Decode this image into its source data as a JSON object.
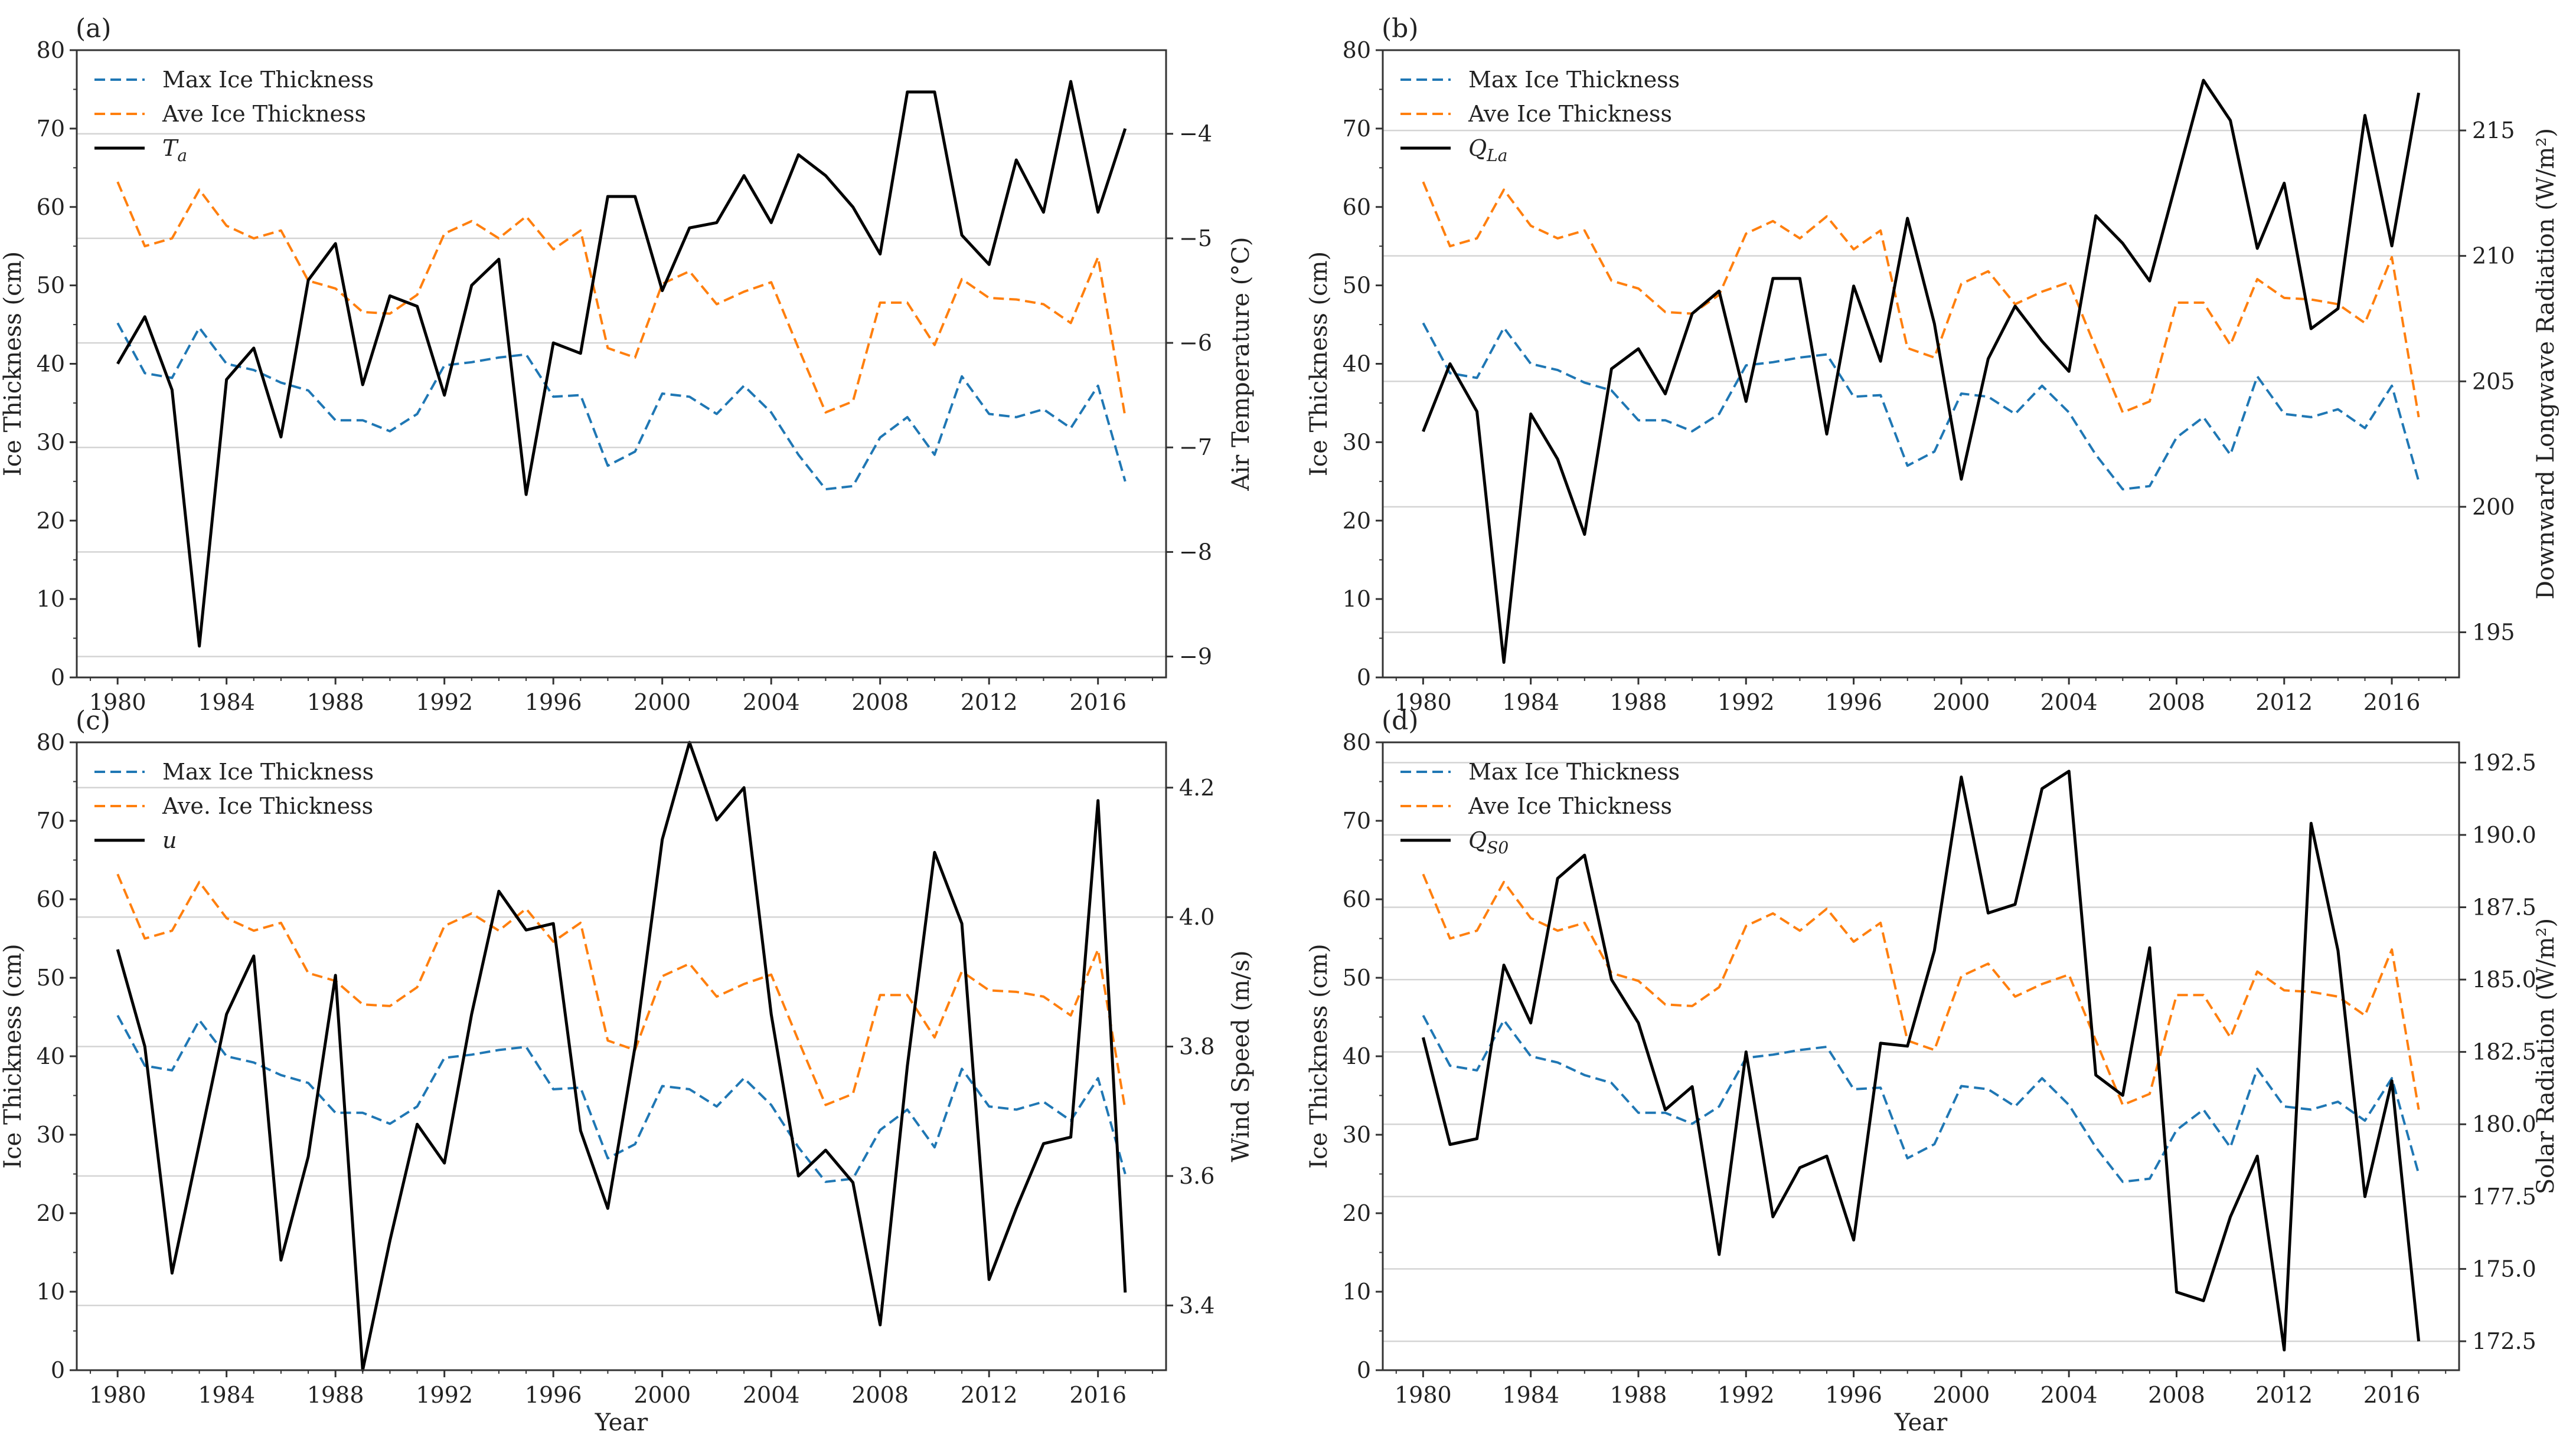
{
  "chart_data": [
    {
      "type": "line",
      "panel_label": "(a)",
      "title": "",
      "xlabel": "",
      "ylabel": "Ice Thickness (cm)",
      "y2label": "Air Temperature (°C)",
      "xlim": [
        1978.5,
        2018.5
      ],
      "ylim": [
        0,
        80
      ],
      "y2lim": [
        -9.2,
        -3.2
      ],
      "x_ticks": [
        1980,
        1984,
        1988,
        1992,
        1996,
        2000,
        2004,
        2008,
        2012,
        2016
      ],
      "x_tick_labels": [
        "1980",
        "1984",
        "1988",
        "1992",
        "1996",
        "2000",
        "2004",
        "2008",
        "2012",
        "2016"
      ],
      "y_ticks": [
        0,
        10,
        20,
        30,
        40,
        50,
        60,
        70,
        80
      ],
      "y_tick_labels": [
        "0",
        "10",
        "20",
        "30",
        "40",
        "50",
        "60",
        "70",
        "80"
      ],
      "y2_ticks": [
        -9,
        -8,
        -7,
        -6,
        -5,
        -4
      ],
      "y2_tick_labels": [
        "−9",
        "−8",
        "−7",
        "−6",
        "−5",
        "−4"
      ],
      "legend_position": "top-left",
      "x": [
        1980,
        1981,
        1982,
        1983,
        1984,
        1985,
        1986,
        1987,
        1988,
        1989,
        1990,
        1991,
        1992,
        1993,
        1994,
        1995,
        1996,
        1997,
        1998,
        1999,
        2000,
        2001,
        2002,
        2003,
        2004,
        2005,
        2006,
        2007,
        2008,
        2009,
        2010,
        2011,
        2012,
        2013,
        2014,
        2015,
        2016,
        2017
      ],
      "series": [
        {
          "name": "Max Ice Thickness",
          "label_main": "Max Ice Thickness",
          "label_sub": "",
          "axis": "left",
          "style": "dashed",
          "color": "#1f77b4",
          "values": [
            45.2,
            38.8,
            38.2,
            44.6,
            40.0,
            39.2,
            37.6,
            36.6,
            32.8,
            32.8,
            31.4,
            33.6,
            39.8,
            40.2,
            40.8,
            41.2,
            35.8,
            36.0,
            27.0,
            28.8,
            36.2,
            35.8,
            33.6,
            37.2,
            33.8,
            28.4,
            24.0,
            24.4,
            30.6,
            33.2,
            28.4,
            38.4,
            33.6,
            33.2,
            34.2,
            31.8,
            37.2,
            25.0
          ]
        },
        {
          "name": "Ave Ice Thickness",
          "label_main": "Ave Ice Thickness",
          "label_sub": "",
          "axis": "left",
          "style": "dashed",
          "color": "#ff7f0e",
          "values": [
            63.2,
            55.0,
            56.0,
            62.2,
            57.6,
            56.0,
            57.0,
            50.6,
            49.6,
            46.6,
            46.4,
            48.8,
            56.6,
            58.2,
            56.0,
            58.8,
            54.6,
            57.0,
            42.0,
            40.8,
            50.2,
            51.8,
            47.6,
            49.2,
            50.4,
            42.0,
            33.8,
            35.2,
            47.8,
            47.8,
            42.4,
            50.8,
            48.4,
            48.2,
            47.6,
            45.2,
            53.6,
            33.2
          ]
        },
        {
          "name": "T_a",
          "label_main": "T",
          "label_sub": "a",
          "axis": "right",
          "style": "solid",
          "color": "#000000",
          "values": [
            -6.2,
            -5.75,
            -6.45,
            -8.9,
            -6.35,
            -6.05,
            -6.9,
            -5.4,
            -5.05,
            -6.4,
            -5.55,
            -5.65,
            -6.5,
            -5.45,
            -5.2,
            -7.45,
            -6.0,
            -6.1,
            -4.6,
            -4.6,
            -5.5,
            -4.9,
            -4.85,
            -4.4,
            -4.85,
            -4.2,
            -4.4,
            -4.7,
            -5.15,
            -3.6,
            -3.6,
            -4.97,
            -5.25,
            -4.25,
            -4.75,
            -3.5,
            -4.75,
            -3.95
          ]
        }
      ]
    },
    {
      "type": "line",
      "panel_label": "(b)",
      "title": "",
      "xlabel": "",
      "ylabel": "Ice Thickness (cm)",
      "y2label": "Downward Longwave Radiation (W/m²)",
      "xlim": [
        1978.5,
        2018.5
      ],
      "ylim": [
        0,
        80
      ],
      "y2lim": [
        193.2,
        218.2
      ],
      "x_ticks": [
        1980,
        1984,
        1988,
        1992,
        1996,
        2000,
        2004,
        2008,
        2012,
        2016
      ],
      "x_tick_labels": [
        "1980",
        "1984",
        "1988",
        "1992",
        "1996",
        "2000",
        "2004",
        "2008",
        "2012",
        "2016"
      ],
      "y_ticks": [
        0,
        10,
        20,
        30,
        40,
        50,
        60,
        70,
        80
      ],
      "y_tick_labels": [
        "0",
        "10",
        "20",
        "30",
        "40",
        "50",
        "60",
        "70",
        "80"
      ],
      "y2_ticks": [
        195,
        200,
        205,
        210,
        215
      ],
      "y2_tick_labels": [
        "195",
        "200",
        "205",
        "210",
        "215"
      ],
      "legend_position": "top-left",
      "x": [
        1980,
        1981,
        1982,
        1983,
        1984,
        1985,
        1986,
        1987,
        1988,
        1989,
        1990,
        1991,
        1992,
        1993,
        1994,
        1995,
        1996,
        1997,
        1998,
        1999,
        2000,
        2001,
        2002,
        2003,
        2004,
        2005,
        2006,
        2007,
        2008,
        2009,
        2010,
        2011,
        2012,
        2013,
        2014,
        2015,
        2016,
        2017
      ],
      "series": [
        {
          "name": "Max Ice Thickness",
          "label_main": "Max Ice Thickness",
          "label_sub": "",
          "axis": "left",
          "style": "dashed",
          "color": "#1f77b4",
          "values": [
            45.2,
            38.8,
            38.2,
            44.6,
            40.0,
            39.2,
            37.6,
            36.6,
            32.8,
            32.8,
            31.4,
            33.6,
            39.8,
            40.2,
            40.8,
            41.2,
            35.8,
            36.0,
            27.0,
            28.8,
            36.2,
            35.8,
            33.6,
            37.2,
            33.8,
            28.4,
            24.0,
            24.4,
            30.6,
            33.2,
            28.4,
            38.4,
            33.6,
            33.2,
            34.2,
            31.8,
            37.2,
            25.0
          ]
        },
        {
          "name": "Ave Ice Thickness",
          "label_main": "Ave Ice Thickness",
          "label_sub": "",
          "axis": "left",
          "style": "dashed",
          "color": "#ff7f0e",
          "values": [
            63.2,
            55.0,
            56.0,
            62.2,
            57.6,
            56.0,
            57.0,
            50.6,
            49.6,
            46.6,
            46.4,
            48.8,
            56.6,
            58.2,
            56.0,
            58.8,
            54.6,
            57.0,
            42.0,
            40.8,
            50.2,
            51.8,
            47.6,
            49.2,
            50.4,
            42.0,
            33.8,
            35.2,
            47.8,
            47.8,
            42.4,
            50.8,
            48.4,
            48.2,
            47.6,
            45.2,
            53.6,
            33.2
          ]
        },
        {
          "name": "Q_La",
          "label_main": "Q",
          "label_sub": "La",
          "axis": "right",
          "style": "solid",
          "color": "#000000",
          "values": [
            203.0,
            205.7,
            203.8,
            193.8,
            203.7,
            201.9,
            198.9,
            205.5,
            206.3,
            204.5,
            207.7,
            208.6,
            204.2,
            209.1,
            209.1,
            202.9,
            208.8,
            205.8,
            211.5,
            207.3,
            201.1,
            205.9,
            208.0,
            206.6,
            205.4,
            211.6,
            210.5,
            209.0,
            213.0,
            217.0,
            215.4,
            210.3,
            212.9,
            207.1,
            207.9,
            215.6,
            210.4,
            216.5
          ]
        }
      ]
    },
    {
      "type": "line",
      "panel_label": "(c)",
      "title": "",
      "xlabel": "Year",
      "ylabel": "Ice Thickness (cm)",
      "y2label": "Wind Speed (m/s)",
      "xlim": [
        1978.5,
        2018.5
      ],
      "ylim": [
        0,
        80
      ],
      "y2lim": [
        3.3,
        4.27
      ],
      "x_ticks": [
        1980,
        1984,
        1988,
        1992,
        1996,
        2000,
        2004,
        2008,
        2012,
        2016
      ],
      "x_tick_labels": [
        "1980",
        "1984",
        "1988",
        "1992",
        "1996",
        "2000",
        "2004",
        "2008",
        "2012",
        "2016"
      ],
      "y_ticks": [
        0,
        10,
        20,
        30,
        40,
        50,
        60,
        70,
        80
      ],
      "y_tick_labels": [
        "0",
        "10",
        "20",
        "30",
        "40",
        "50",
        "60",
        "70",
        "80"
      ],
      "y2_ticks": [
        3.4,
        3.6,
        3.8,
        4.0,
        4.2
      ],
      "y2_tick_labels": [
        "3.4",
        "3.6",
        "3.8",
        "4.0",
        "4.2"
      ],
      "legend_position": "top-left",
      "x": [
        1980,
        1981,
        1982,
        1983,
        1984,
        1985,
        1986,
        1987,
        1988,
        1989,
        1990,
        1991,
        1992,
        1993,
        1994,
        1995,
        1996,
        1997,
        1998,
        1999,
        2000,
        2001,
        2002,
        2003,
        2004,
        2005,
        2006,
        2007,
        2008,
        2009,
        2010,
        2011,
        2012,
        2013,
        2014,
        2015,
        2016,
        2017
      ],
      "series": [
        {
          "name": "Max Ice Thickness",
          "label_main": "Max Ice Thickness",
          "label_sub": "",
          "axis": "left",
          "style": "dashed",
          "color": "#1f77b4",
          "values": [
            45.2,
            38.8,
            38.2,
            44.6,
            40.0,
            39.2,
            37.6,
            36.6,
            32.8,
            32.8,
            31.4,
            33.6,
            39.8,
            40.2,
            40.8,
            41.2,
            35.8,
            36.0,
            27.0,
            28.8,
            36.2,
            35.8,
            33.6,
            37.2,
            33.8,
            28.4,
            24.0,
            24.4,
            30.6,
            33.2,
            28.4,
            38.4,
            33.6,
            33.2,
            34.2,
            31.8,
            37.2,
            25.0
          ]
        },
        {
          "name": "Ave. Ice Thickness",
          "label_main": "Ave. Ice Thickness",
          "label_sub": "",
          "axis": "left",
          "style": "dashed",
          "color": "#ff7f0e",
          "values": [
            63.2,
            55.0,
            56.0,
            62.2,
            57.6,
            56.0,
            57.0,
            50.6,
            49.6,
            46.6,
            46.4,
            48.8,
            56.6,
            58.2,
            56.0,
            58.8,
            54.6,
            57.0,
            42.0,
            40.8,
            50.2,
            51.8,
            47.6,
            49.2,
            50.4,
            42.0,
            33.8,
            35.2,
            47.8,
            47.8,
            42.4,
            50.8,
            48.4,
            48.2,
            47.6,
            45.2,
            53.6,
            33.2
          ]
        },
        {
          "name": "u",
          "label_main": "u",
          "label_sub": "",
          "axis": "right",
          "style": "solid",
          "color": "#000000",
          "values": [
            3.95,
            3.8,
            3.45,
            3.65,
            3.85,
            3.94,
            3.47,
            3.63,
            3.91,
            3.3,
            3.5,
            3.68,
            3.62,
            3.85,
            4.04,
            3.98,
            3.99,
            3.67,
            3.55,
            3.8,
            4.12,
            4.27,
            4.15,
            4.2,
            3.85,
            3.6,
            3.64,
            3.59,
            3.37,
            3.77,
            4.1,
            3.99,
            3.44,
            3.55,
            3.65,
            3.66,
            4.18,
            3.42
          ]
        }
      ]
    },
    {
      "type": "line",
      "panel_label": "(d)",
      "title": "",
      "xlabel": "Year",
      "ylabel": "Ice Thickness (cm)",
      "y2label": "Solar Radiation (W/m²)",
      "xlim": [
        1978.5,
        2018.5
      ],
      "ylim": [
        0,
        80
      ],
      "y2lim": [
        171.5,
        193.2
      ],
      "x_ticks": [
        1980,
        1984,
        1988,
        1992,
        1996,
        2000,
        2004,
        2008,
        2012,
        2016
      ],
      "x_tick_labels": [
        "1980",
        "1984",
        "1988",
        "1992",
        "1996",
        "2000",
        "2004",
        "2008",
        "2012",
        "2016"
      ],
      "y_ticks": [
        0,
        10,
        20,
        30,
        40,
        50,
        60,
        70,
        80
      ],
      "y_tick_labels": [
        "0",
        "10",
        "20",
        "30",
        "40",
        "50",
        "60",
        "70",
        "80"
      ],
      "y2_ticks": [
        172.5,
        175.0,
        177.5,
        180.0,
        182.5,
        185.0,
        187.5,
        190.0,
        192.5
      ],
      "y2_tick_labels": [
        "172.5",
        "175.0",
        "177.5",
        "180.0",
        "182.5",
        "185.0",
        "187.5",
        "190.0",
        "192.5"
      ],
      "legend_position": "top-left",
      "x": [
        1980,
        1981,
        1982,
        1983,
        1984,
        1985,
        1986,
        1987,
        1988,
        1989,
        1990,
        1991,
        1992,
        1993,
        1994,
        1995,
        1996,
        1997,
        1998,
        1999,
        2000,
        2001,
        2002,
        2003,
        2004,
        2005,
        2006,
        2007,
        2008,
        2009,
        2010,
        2011,
        2012,
        2013,
        2014,
        2015,
        2016,
        2017
      ],
      "series": [
        {
          "name": "Max Ice Thickness",
          "label_main": "Max Ice Thickness",
          "label_sub": "",
          "axis": "left",
          "style": "dashed",
          "color": "#1f77b4",
          "values": [
            45.2,
            38.8,
            38.2,
            44.6,
            40.0,
            39.2,
            37.6,
            36.6,
            32.8,
            32.8,
            31.4,
            33.6,
            39.8,
            40.2,
            40.8,
            41.2,
            35.8,
            36.0,
            27.0,
            28.8,
            36.2,
            35.8,
            33.6,
            37.2,
            33.8,
            28.4,
            24.0,
            24.4,
            30.6,
            33.2,
            28.4,
            38.4,
            33.6,
            33.2,
            34.2,
            31.8,
            37.2,
            25.0
          ]
        },
        {
          "name": "Ave Ice Thickness",
          "label_main": "Ave Ice Thickness",
          "label_sub": "",
          "axis": "left",
          "style": "dashed",
          "color": "#ff7f0e",
          "values": [
            63.2,
            55.0,
            56.0,
            62.2,
            57.6,
            56.0,
            57.0,
            50.6,
            49.6,
            46.6,
            46.4,
            48.8,
            56.6,
            58.2,
            56.0,
            58.8,
            54.6,
            57.0,
            42.0,
            40.8,
            50.2,
            51.8,
            47.6,
            49.2,
            50.4,
            42.0,
            33.8,
            35.2,
            47.8,
            47.8,
            42.4,
            50.8,
            48.4,
            48.2,
            47.6,
            45.2,
            53.6,
            33.2
          ]
        },
        {
          "name": "Q_S0",
          "label_main": "Q",
          "label_sub": "S0",
          "axis": "right",
          "style": "solid",
          "color": "#000000",
          "values": [
            183.0,
            179.3,
            179.5,
            185.5,
            183.5,
            188.5,
            189.3,
            185.0,
            183.5,
            180.5,
            181.3,
            175.5,
            182.5,
            176.8,
            178.5,
            178.9,
            176.0,
            182.8,
            182.7,
            186.0,
            192.0,
            187.3,
            187.6,
            191.6,
            192.2,
            181.7,
            181.0,
            186.1,
            174.2,
            173.9,
            176.8,
            178.9,
            172.2,
            190.4,
            186.0,
            177.5,
            181.5,
            172.5
          ]
        }
      ]
    }
  ]
}
